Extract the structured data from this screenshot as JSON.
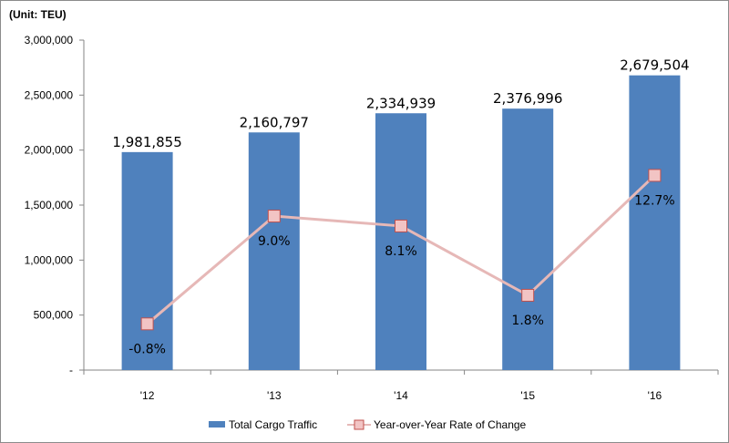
{
  "chart_data": {
    "type": "bar",
    "unit_label": "(Unit: TEU)",
    "categories": [
      "'12",
      "'13",
      "'14",
      "'15",
      "'16"
    ],
    "y_ticks": [
      "-",
      "500,000",
      "1,000,000",
      "1,500,000",
      "2,000,000",
      "2,500,000",
      "3,000,000"
    ],
    "ylim": [
      0,
      3000000
    ],
    "series": [
      {
        "name": "Total Cargo Traffic",
        "type": "bar",
        "color": "#4f81bd",
        "values": [
          1981855,
          2160797,
          2334939,
          2376996,
          2679504
        ],
        "labels": [
          "1,981,855",
          "2,160,797",
          "2,334,939",
          "2,376,996",
          "2,679,504"
        ]
      },
      {
        "name": "Year-over-Year Rate of Change",
        "type": "line",
        "color": "#e6b8b7",
        "marker_color": "#f2c4c4",
        "marker_edge": "#c0504d",
        "values": [
          -0.8,
          9.0,
          8.1,
          1.8,
          12.7
        ],
        "labels": [
          "-0.8%",
          "9.0%",
          "8.1%",
          "1.8%",
          "12.7%"
        ]
      }
    ],
    "legend_position": "bottom"
  }
}
